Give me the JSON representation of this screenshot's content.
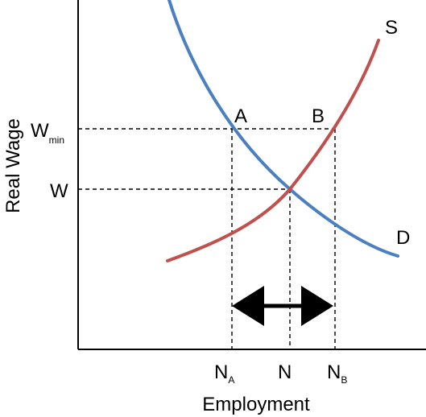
{
  "diagram": {
    "y_axis_label": "Real Wage",
    "x_axis_label": "Employment",
    "curves": {
      "supply": {
        "label": "S",
        "color": "#c0504d"
      },
      "demand": {
        "label": "D",
        "color": "#4a7fc1"
      }
    },
    "points": {
      "a": "A",
      "b": "B"
    },
    "y_ticks": {
      "wmin_main": "W",
      "wmin_sub": "min",
      "w": "W"
    },
    "x_ticks": {
      "na_main": "N",
      "na_sub": "A",
      "n": "N",
      "nb_main": "N",
      "nb_sub": "B"
    }
  }
}
